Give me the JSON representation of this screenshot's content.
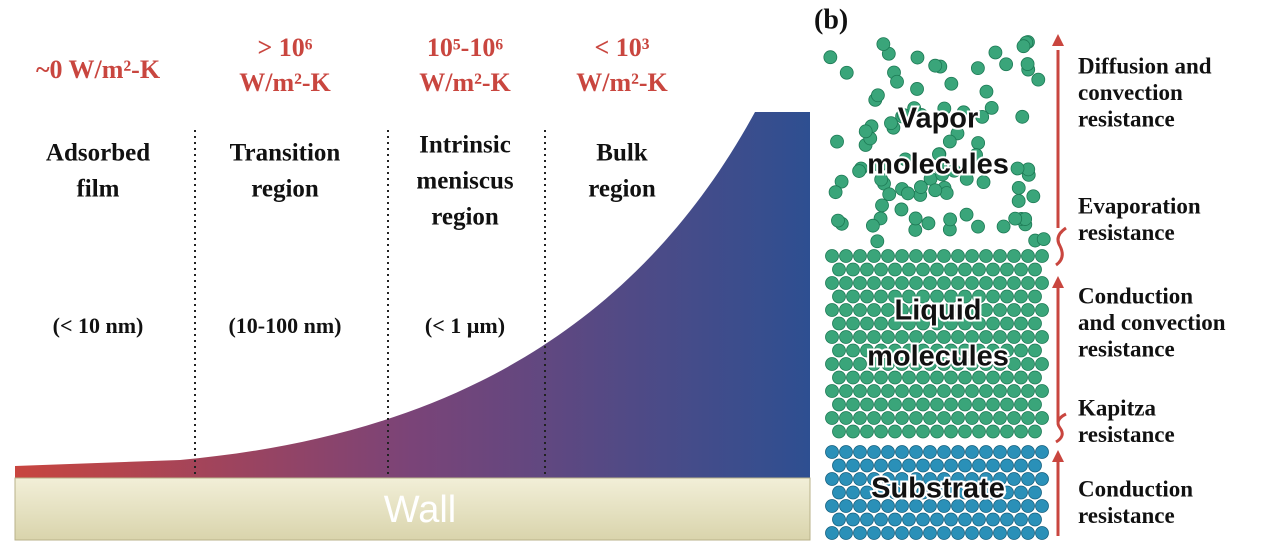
{
  "left_panel": {
    "regions": [
      {
        "heat_transfer": [
          "~0 W/m²-K"
        ],
        "name": [
          "Adsorbed",
          "film"
        ],
        "thickness": "(< 10 nm)"
      },
      {
        "heat_transfer": [
          "> 10⁶",
          "W/m²-K"
        ],
        "name": [
          "Transition",
          "region"
        ],
        "thickness": "(10-100 nm)"
      },
      {
        "heat_transfer": [
          "10⁵-10⁶",
          "W/m²-K"
        ],
        "name": [
          "Intrinsic",
          "meniscus",
          "region"
        ],
        "thickness": "(< 1 µm)"
      },
      {
        "heat_transfer": [
          "< 10³",
          "W/m²-K"
        ],
        "name": [
          "Bulk",
          "region"
        ]
      }
    ],
    "wall": "Wall"
  },
  "right_panel": {
    "label": "(b)",
    "layers": [
      [
        "Vapor",
        "molecules"
      ],
      [
        "Liquid",
        "molecules"
      ],
      [
        "Substrate"
      ]
    ],
    "resistances": [
      [
        "Diffusion and",
        "convection",
        "resistance"
      ],
      [
        "Evaporation",
        "resistance"
      ],
      [
        "Conduction",
        "and convection",
        "resistance"
      ],
      [
        "Kapitza",
        "resistance"
      ],
      [
        "Conduction",
        "resistance"
      ]
    ]
  }
}
